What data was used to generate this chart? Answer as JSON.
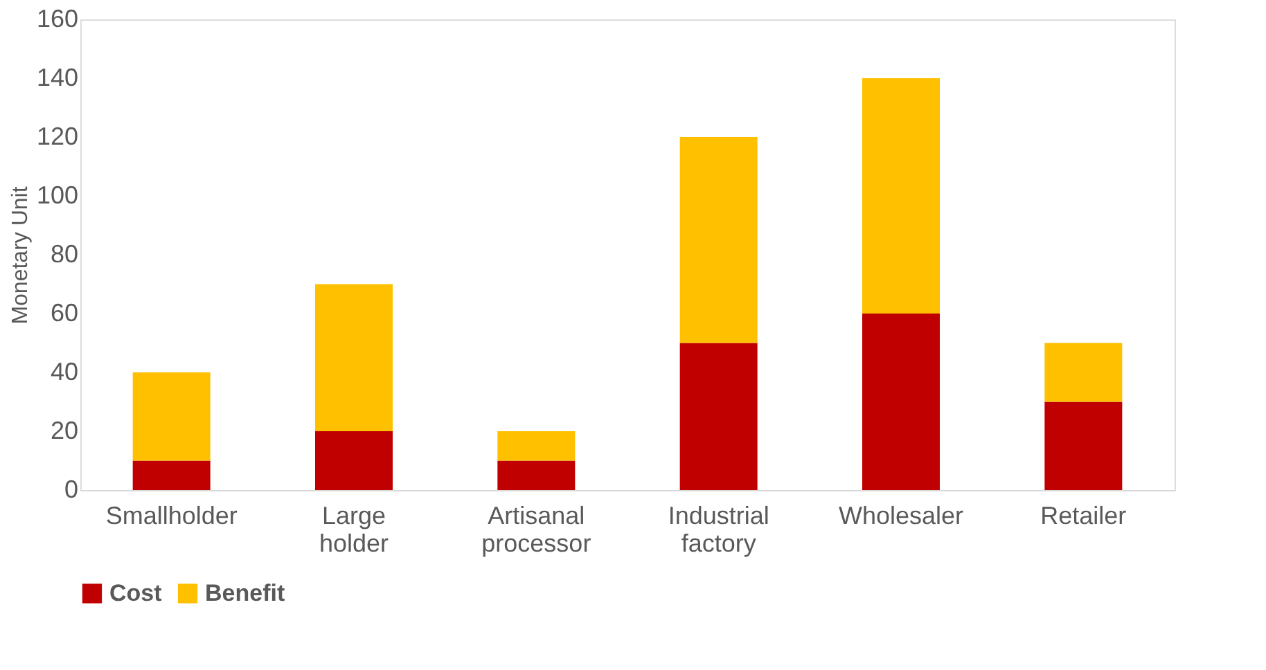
{
  "chart_data": {
    "type": "bar",
    "stacked": true,
    "ylabel": "Monetary Unit",
    "categories": [
      "Smallholder",
      "Large holder",
      "Artisanal processor",
      "Industrial factory",
      "Wholesaler",
      "Retailer"
    ],
    "series": [
      {
        "name": "Cost",
        "color": "#c00000",
        "values": [
          10,
          20,
          10,
          50,
          60,
          30
        ]
      },
      {
        "name": "Benefit",
        "color": "#ffc000",
        "values": [
          30,
          50,
          10,
          70,
          80,
          20
        ]
      }
    ],
    "ylim": [
      0,
      160
    ],
    "yticks": [
      0,
      20,
      40,
      60,
      80,
      100,
      120,
      140,
      160
    ],
    "grid": false,
    "legend": "bottom"
  }
}
